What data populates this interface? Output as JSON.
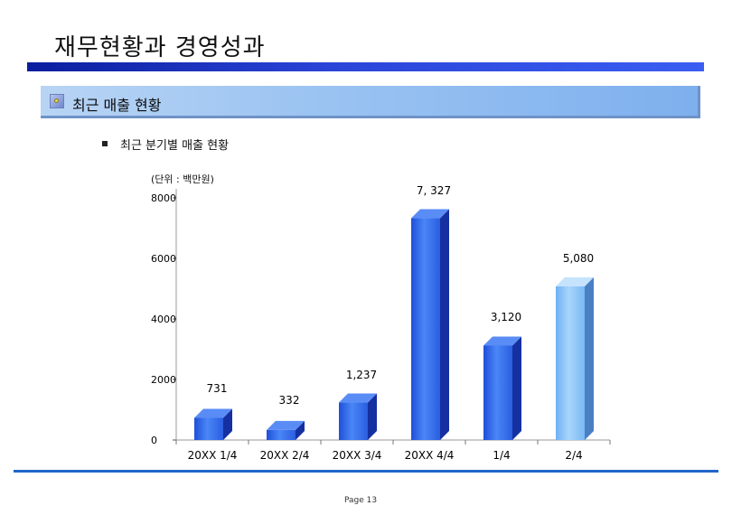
{
  "header": {
    "title": "재무현황과 경영성과"
  },
  "section": {
    "title": "최근 매출 현황"
  },
  "subtitle": "최근 분기별 매출 현황",
  "unit_label": "(단위 : 백만원)",
  "footer": {
    "page": "Page 13"
  },
  "colors": {
    "bar_blue": "#3a6ef0",
    "bar_light": "#8ec4f7",
    "title_bar": "#1a34c8",
    "bottom_line": "#2266c8"
  },
  "chart_data": {
    "type": "bar",
    "title": "",
    "xlabel": "",
    "ylabel": "",
    "categories": [
      "20XX 1/4",
      "20XX 2/4",
      "20XX 3/4",
      "20XX 4/4",
      "1/4",
      "2/4"
    ],
    "values": [
      731,
      332,
      1237,
      7327,
      3120,
      5080
    ],
    "value_labels": [
      "731",
      "332",
      "1,237",
      "7, 327",
      "3,120",
      "5,080"
    ],
    "ylim": [
      0,
      8000
    ],
    "yticks": [
      "0",
      "2000",
      "4000",
      "6000",
      "8000"
    ],
    "ytick_values": [
      0,
      2000,
      4000,
      6000,
      8000
    ],
    "grid": false,
    "style": "3d"
  }
}
